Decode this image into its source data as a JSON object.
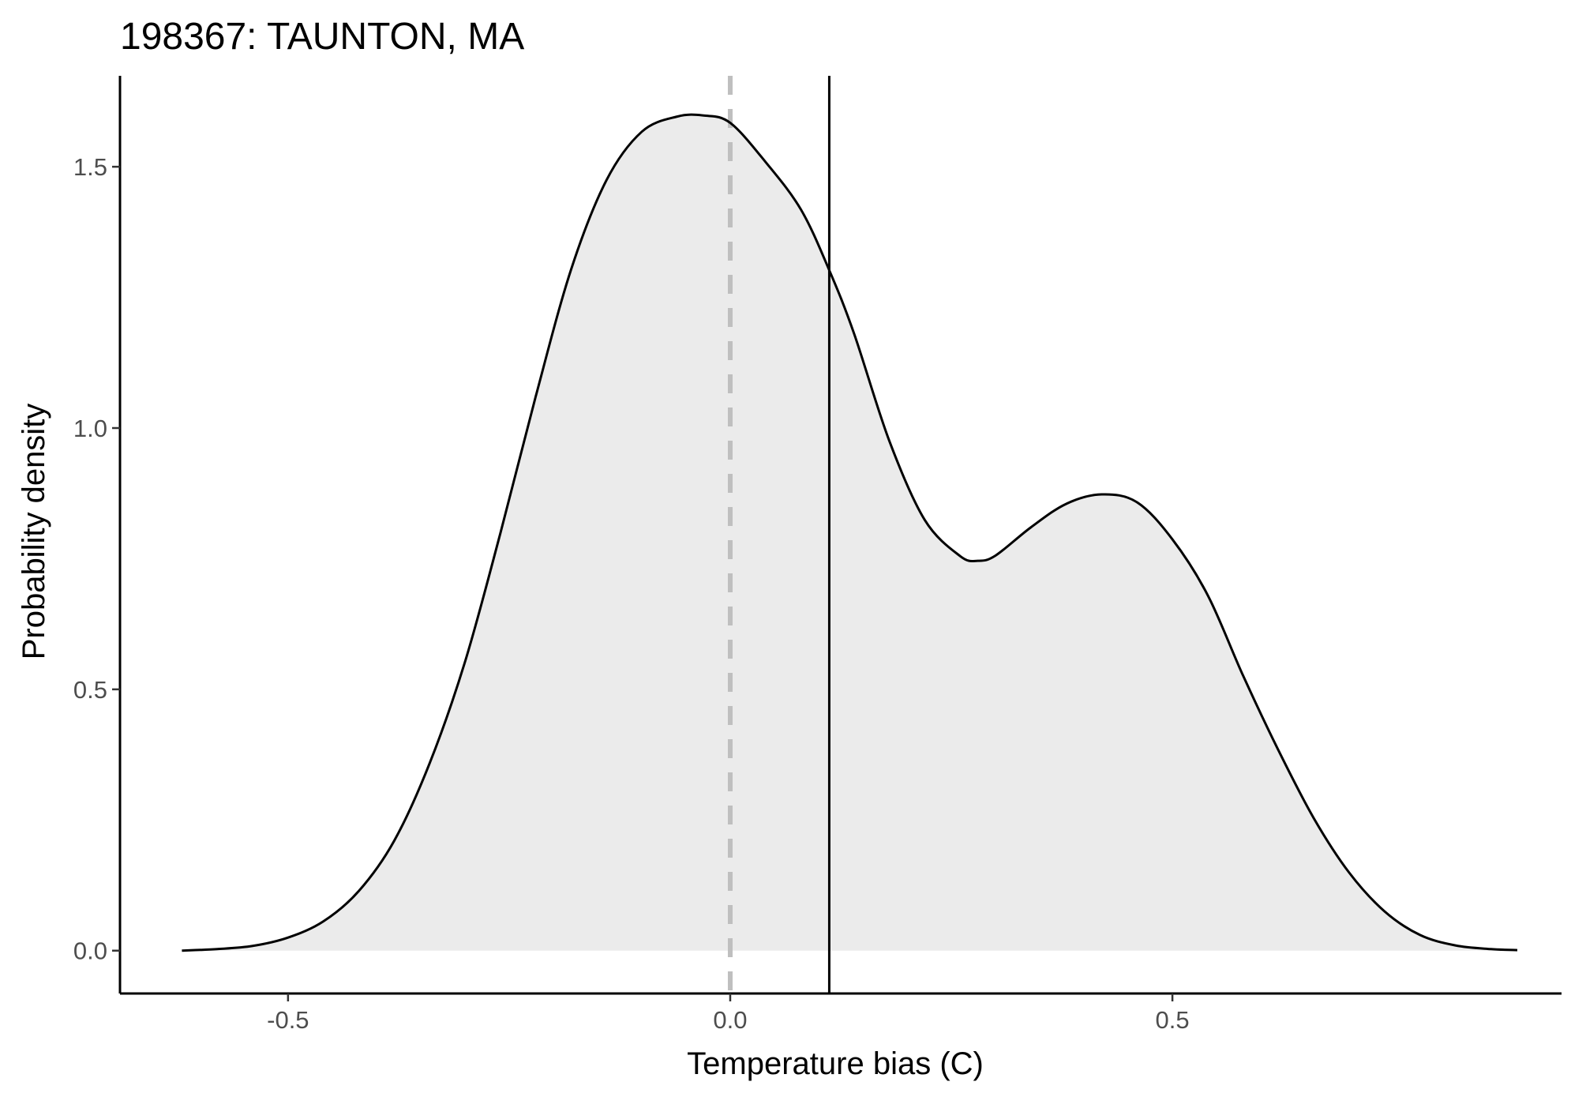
{
  "chart_data": {
    "type": "area",
    "title": "198367: TAUNTON, MA",
    "xlabel": "Temperature bias (C)",
    "ylabel": "Probability density",
    "xlim": [
      -0.69,
      0.94
    ],
    "ylim": [
      -0.082,
      1.674
    ],
    "x_ticks": [
      -0.5,
      0.0,
      0.5
    ],
    "x_tick_labels": [
      "-0.5",
      "0.0",
      "0.5"
    ],
    "y_ticks": [
      0.0,
      0.5,
      1.0,
      1.5
    ],
    "y_tick_labels": [
      "0.0",
      "0.5",
      "1.0",
      "1.5"
    ],
    "grid": false,
    "legend": "none",
    "fill_color": "#ebebeb",
    "line_color": "#000000",
    "reference_lines": [
      {
        "kind": "vertical",
        "x": 0.0,
        "style": "dashed",
        "color": "#bfbfbf"
      },
      {
        "kind": "vertical",
        "x": 0.112,
        "style": "solid",
        "color": "#000000"
      }
    ],
    "density": {
      "x": [
        -0.62,
        -0.58,
        -0.54,
        -0.5,
        -0.46,
        -0.42,
        -0.38,
        -0.34,
        -0.3,
        -0.26,
        -0.22,
        -0.18,
        -0.14,
        -0.1,
        -0.06,
        -0.03,
        0.0,
        0.04,
        0.08,
        0.112,
        0.14,
        0.18,
        0.22,
        0.26,
        0.28,
        0.3,
        0.34,
        0.38,
        0.42,
        0.46,
        0.5,
        0.54,
        0.58,
        0.62,
        0.66,
        0.7,
        0.74,
        0.78,
        0.82,
        0.86,
        0.89
      ],
      "y": [
        0.0,
        0.003,
        0.009,
        0.025,
        0.056,
        0.114,
        0.21,
        0.358,
        0.552,
        0.798,
        1.06,
        1.303,
        1.474,
        1.567,
        1.596,
        1.598,
        1.584,
        1.509,
        1.418,
        1.302,
        1.181,
        0.975,
        0.824,
        0.755,
        0.746,
        0.756,
        0.81,
        0.855,
        0.873,
        0.858,
        0.787,
        0.68,
        0.526,
        0.383,
        0.253,
        0.149,
        0.075,
        0.03,
        0.01,
        0.003,
        0.001
      ]
    }
  }
}
